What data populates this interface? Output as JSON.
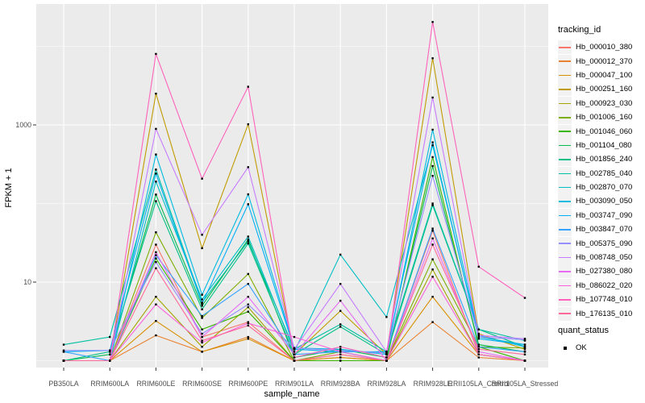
{
  "figure": {
    "bg": "#FFFFFF",
    "panel_bg": "#EBEBEB",
    "grid_color": "#FFFFFF",
    "tick_color": "#333333",
    "tick_label_color": "#4D4D4D",
    "axis_title_color": "#000000",
    "point_color": "#000000"
  },
  "y_axis": {
    "title": "FPKM + 1",
    "tick_labels": [
      "1000",
      "10"
    ],
    "tick_values": [
      1000,
      10
    ],
    "minor_grid_values": [
      1,
      100,
      10000
    ],
    "scale": "log10"
  },
  "x_axis": {
    "title": "sample_name"
  },
  "legend": {
    "tracking_title": "tracking_id",
    "quant_title": "quant_status",
    "quant_items": [
      {
        "label": "OK"
      }
    ]
  },
  "chart_data": {
    "type": "line",
    "title": "",
    "xlabel": "sample_name",
    "ylabel": "FPKM + 1",
    "yscale": "log10",
    "ylim": [
      0.7,
      34000
    ],
    "grid": true,
    "legend_position": "right",
    "x_categories": [
      "PB350LA",
      "RRIM600LA",
      "RRIM600LE",
      "RRIM600SE",
      "RRIM600PE",
      "RRIM901LA",
      "RRIM928BA",
      "RRIM928LA",
      "RRIM928LE",
      "RRII105LA_Control",
      "RRII105LA_Stressed"
    ],
    "series": [
      {
        "name": "Hb_000010_380",
        "color": "#F8766D",
        "values": [
          1,
          1,
          30,
          2,
          3.1,
          1,
          1.2,
          1,
          45,
          1.2,
          1
        ]
      },
      {
        "name": "Hb_000012_370",
        "color": "#EA8331",
        "values": [
          1,
          1,
          2.1,
          1.3,
          2,
          1,
          1.1,
          1,
          3.1,
          1.1,
          1
        ]
      },
      {
        "name": "Hb_000047_100",
        "color": "#D89000",
        "values": [
          1,
          1,
          3.2,
          1.3,
          1.9,
          1,
          1.1,
          1,
          6.5,
          1.2,
          1
        ]
      },
      {
        "name": "Hb_000251_160",
        "color": "#C09B00",
        "values": [
          1,
          1,
          2500,
          27,
          1020,
          1.2,
          4.3,
          1.2,
          7050,
          2.2,
          1.4
        ]
      },
      {
        "name": "Hb_000923_030",
        "color": "#A3A500",
        "values": [
          1,
          1,
          6.5,
          1.5,
          4.8,
          1,
          1,
          1,
          14.5,
          1.2,
          1
        ]
      },
      {
        "name": "Hb_001006_160",
        "color": "#7CAE00",
        "values": [
          1,
          1,
          43,
          3.5,
          12.7,
          1,
          1.3,
          1,
          19.5,
          1.5,
          1.45
        ]
      },
      {
        "name": "Hb_001046_060",
        "color": "#39B600",
        "values": [
          1,
          1,
          20,
          2.5,
          4.2,
          1,
          1,
          1,
          390,
          1.5,
          1
        ]
      },
      {
        "name": "Hb_001104_080",
        "color": "#00BB4E",
        "values": [
          1,
          1.2,
          130,
          5,
          35,
          1.1,
          1.4,
          1.1,
          300,
          1.6,
          1.3
        ]
      },
      {
        "name": "Hb_001856_240",
        "color": "#00C087",
        "values": [
          1,
          1.3,
          107,
          4.5,
          31,
          1.2,
          2.7,
          1.2,
          95,
          2.5,
          1.5
        ]
      },
      {
        "name": "Hb_002785_040",
        "color": "#00C1A3",
        "values": [
          1.6,
          2.0,
          270,
          5.5,
          33,
          1.4,
          2.9,
          1.3,
          100,
          2.5,
          1.8
        ]
      },
      {
        "name": "Hb_002870_070",
        "color": "#00BFC4",
        "values": [
          1,
          1,
          190,
          6,
          38,
          1.3,
          22.4,
          3.6,
          550,
          2.0,
          1.6
        ]
      },
      {
        "name": "Hb_003090_050",
        "color": "#00BAE0",
        "values": [
          1,
          1,
          420,
          6.9,
          131,
          1.45,
          1.4,
          1.2,
          870,
          2.1,
          1.5
        ]
      },
      {
        "name": "Hb_003747_090",
        "color": "#00B0F6",
        "values": [
          1.3,
          1.35,
          240,
          5.3,
          98,
          1.4,
          1.3,
          1.3,
          600,
          1.9,
          1.6
        ]
      },
      {
        "name": "Hb_003847_070",
        "color": "#35A2FF",
        "values": [
          1.3,
          1,
          22,
          3.7,
          9.5,
          1.2,
          1.3,
          1,
          48,
          1.5,
          1.3
        ]
      },
      {
        "name": "Hb_005375_090",
        "color": "#9590FF",
        "values": [
          1.35,
          1.35,
          18,
          2.2,
          5.2,
          1.45,
          1.35,
          1.25,
          225,
          2.0,
          1.85
        ]
      },
      {
        "name": "Hb_008748_050",
        "color": "#C77CFF",
        "values": [
          1,
          1,
          890,
          40,
          290,
          1.4,
          9.5,
          1.3,
          2230,
          2.1,
          1.9
        ]
      },
      {
        "name": "Hb_027380_080",
        "color": "#E76BF3",
        "values": [
          1,
          1,
          24,
          2,
          6.5,
          1.2,
          5.8,
          1,
          36,
          1.3,
          1
        ]
      },
      {
        "name": "Hb_086022_020",
        "color": "#FA62DB",
        "values": [
          1,
          1,
          5.2,
          1.7,
          3.0,
          2.0,
          1.3,
          1,
          11.7,
          1.2,
          1
        ]
      },
      {
        "name": "Hb_107748_010",
        "color": "#FF62BC",
        "values": [
          1,
          1,
          8000,
          207,
          3060,
          1.1,
          1.5,
          1.1,
          20400,
          15.7,
          6.3
        ]
      },
      {
        "name": "Hb_176135_010",
        "color": "#FF6A98",
        "values": [
          1,
          1,
          15,
          1.8,
          2.8,
          1,
          1.2,
          1,
          30,
          1.4,
          1.2
        ]
      }
    ]
  }
}
